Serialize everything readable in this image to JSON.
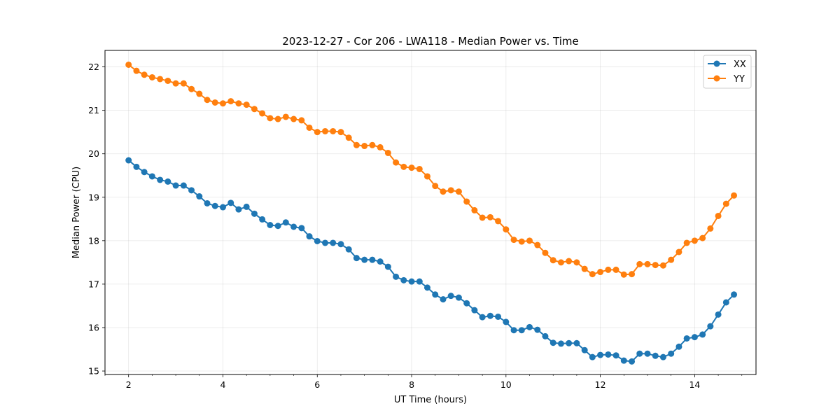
{
  "chart_data": {
    "type": "line",
    "title": "2023-12-27 - Cor 206 - LWA118 - Median Power vs. Time",
    "xlabel": "UT Time (hours)",
    "ylabel": "Median Power (CPU)",
    "xlim": [
      1.5,
      15.3
    ],
    "ylim": [
      14.92,
      22.38
    ],
    "xticks": [
      2,
      4,
      6,
      8,
      10,
      12,
      14
    ],
    "yticks": [
      15,
      16,
      17,
      18,
      19,
      20,
      21,
      22
    ],
    "grid": true,
    "legend": "top-right",
    "x": [
      2.0,
      2.167,
      2.333,
      2.5,
      2.667,
      2.833,
      3.0,
      3.167,
      3.333,
      3.5,
      3.667,
      3.833,
      4.0,
      4.167,
      4.333,
      4.5,
      4.667,
      4.833,
      5.0,
      5.167,
      5.333,
      5.5,
      5.667,
      5.833,
      6.0,
      6.167,
      6.333,
      6.5,
      6.667,
      6.833,
      7.0,
      7.167,
      7.333,
      7.5,
      7.667,
      7.833,
      8.0,
      8.167,
      8.333,
      8.5,
      8.667,
      8.833,
      9.0,
      9.167,
      9.333,
      9.5,
      9.667,
      9.833,
      10.0,
      10.167,
      10.333,
      10.5,
      10.667,
      10.833,
      11.0,
      11.167,
      11.333,
      11.5,
      11.667,
      11.833,
      12.0,
      12.167,
      12.333,
      12.5,
      12.667,
      12.833,
      13.0,
      13.167,
      13.333,
      13.5,
      13.667,
      13.833,
      14.0,
      14.167,
      14.333,
      14.5,
      14.667,
      14.833
    ],
    "series": [
      {
        "name": "XX",
        "color": "#1f77b4",
        "values": [
          19.85,
          19.7,
          19.58,
          19.48,
          19.4,
          19.36,
          19.27,
          19.27,
          19.16,
          19.02,
          18.86,
          18.8,
          18.77,
          18.87,
          18.72,
          18.78,
          18.62,
          18.49,
          18.36,
          18.34,
          18.42,
          18.32,
          18.29,
          18.1,
          17.99,
          17.95,
          17.95,
          17.92,
          17.8,
          17.6,
          17.56,
          17.56,
          17.52,
          17.4,
          17.17,
          17.09,
          17.06,
          17.06,
          16.92,
          16.76,
          16.65,
          16.73,
          16.69,
          16.56,
          16.4,
          16.24,
          16.27,
          16.25,
          16.13,
          15.94,
          15.94,
          16.01,
          15.95,
          15.8,
          15.65,
          15.63,
          15.64,
          15.64,
          15.48,
          15.32,
          15.37,
          15.38,
          15.36,
          15.24,
          15.22,
          15.4,
          15.4,
          15.35,
          15.32,
          15.4,
          15.56,
          15.75,
          15.78,
          15.84,
          16.03,
          16.3,
          16.58,
          16.76
        ]
      },
      {
        "name": "YY",
        "color": "#ff7f0e",
        "values": [
          22.05,
          21.91,
          21.82,
          21.76,
          21.72,
          21.68,
          21.62,
          21.62,
          21.49,
          21.38,
          21.24,
          21.18,
          21.16,
          21.21,
          21.16,
          21.13,
          21.03,
          20.93,
          20.82,
          20.8,
          20.85,
          20.8,
          20.77,
          20.6,
          20.5,
          20.52,
          20.52,
          20.5,
          20.37,
          20.2,
          20.18,
          20.2,
          20.15,
          20.02,
          19.8,
          19.7,
          19.68,
          19.65,
          19.48,
          19.26,
          19.13,
          19.16,
          19.13,
          18.9,
          18.7,
          18.53,
          18.54,
          18.45,
          18.26,
          18.02,
          17.98,
          18.0,
          17.9,
          17.72,
          17.55,
          17.5,
          17.53,
          17.5,
          17.35,
          17.23,
          17.28,
          17.33,
          17.33,
          17.22,
          17.23,
          17.46,
          17.46,
          17.44,
          17.43,
          17.56,
          17.74,
          17.95,
          18.0,
          18.06,
          18.28,
          18.57,
          18.85,
          19.04
        ]
      }
    ]
  }
}
